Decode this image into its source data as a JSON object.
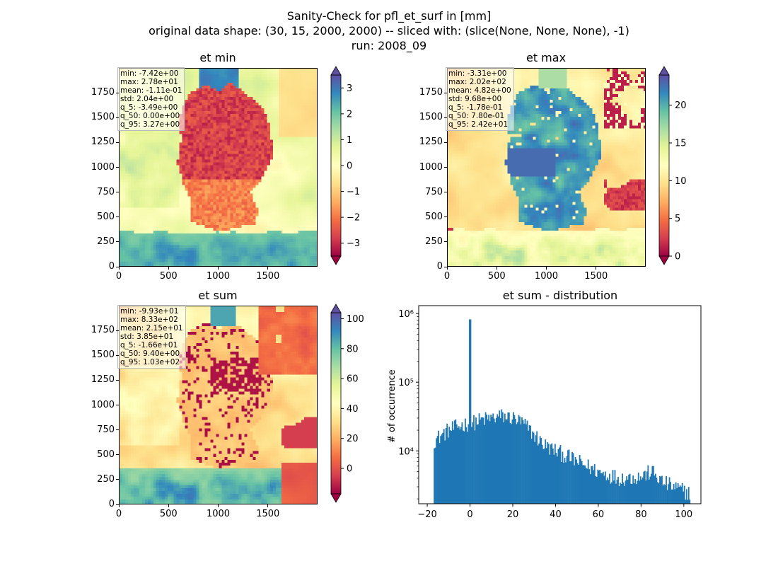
{
  "figure": {
    "title_lines": [
      "Sanity-Check for pfl_et_surf in [mm]",
      "original data shape: (30, 15, 2000, 2000) -- sliced with: (slice(None, None, None), -1)",
      "run: 2008_09"
    ]
  },
  "panels": {
    "et_min": {
      "title": "et min",
      "stats": [
        "min: -7.42e+00",
        "max: 2.78e+01",
        "mean: -1.11e-01",
        "std: 2.04e+00",
        "q_5: -3.49e+00",
        "q_50: 0.00e+00",
        "q_95: 3.27e+00"
      ],
      "colorbar_ticks": [
        "3",
        "2",
        "1",
        "0",
        "−1",
        "−2",
        "−3"
      ],
      "colormap": "Spectral"
    },
    "et_max": {
      "title": "et max",
      "stats": [
        "min: -3.31e+00",
        "max: 2.02e+02",
        "mean: 4.82e+00",
        "std: 9.68e+00",
        "q_5: -1.78e-01",
        "q_50: 7.80e-01",
        "q_95: 2.42e+01"
      ],
      "colorbar_ticks": [
        "20",
        "15",
        "10",
        "5",
        "0"
      ],
      "colormap": "Spectral"
    },
    "et_sum": {
      "title": "et sum",
      "stats": [
        "min: -9.93e+01",
        "max: 8.33e+02",
        "mean: 2.15e+01",
        "std: 3.85e+01",
        "q_5: -1.66e+01",
        "q_50: 9.40e+00",
        "q_95: 1.03e+02"
      ],
      "colorbar_ticks": [
        "100",
        "80",
        "60",
        "40",
        "20",
        "0"
      ],
      "colormap": "Spectral"
    },
    "map_axes": {
      "x_ticks": [
        "0",
        "500",
        "1000",
        "1500"
      ],
      "y_ticks": [
        "1750",
        "1500",
        "1250",
        "1000",
        "750",
        "500",
        "250",
        "0"
      ]
    },
    "hist": {
      "title": "et sum - distribution",
      "ylabel": "# of occurrence",
      "x_ticks": [
        "−20",
        "0",
        "20",
        "40",
        "60",
        "80",
        "100"
      ],
      "y_ticks": [
        "10⁶",
        "10⁵",
        "10⁴"
      ],
      "color": "#1f77b4"
    }
  },
  "chart_data": [
    {
      "type": "heatmap",
      "title": "et min",
      "xlim": [
        0,
        2000
      ],
      "ylim": [
        0,
        2000
      ],
      "colorbar_range": [
        -3.5,
        3.5
      ],
      "colormap": "Spectral"
    },
    {
      "type": "heatmap",
      "title": "et max",
      "xlim": [
        0,
        2000
      ],
      "ylim": [
        0,
        2000
      ],
      "colorbar_range": [
        0,
        24
      ],
      "colormap": "Spectral"
    },
    {
      "type": "heatmap",
      "title": "et sum",
      "xlim": [
        0,
        2000
      ],
      "ylim": [
        0,
        2000
      ],
      "colorbar_range": [
        -17,
        104
      ],
      "colormap": "Spectral"
    },
    {
      "type": "bar",
      "title": "et sum - distribution",
      "ylabel": "# of occurrence",
      "yscale": "log",
      "xlim": [
        -24,
        108
      ],
      "ylim": [
        1700,
        1300000
      ],
      "bin_range": [
        -17,
        103
      ],
      "profile_x": [
        -17,
        -10,
        -5,
        -1,
        0,
        1,
        5,
        10,
        15,
        20,
        25,
        30,
        35,
        40,
        50,
        60,
        70,
        80,
        85,
        90,
        95,
        100,
        103
      ],
      "profile_y": [
        14000,
        20000,
        23000,
        25000,
        820000,
        25000,
        28000,
        30000,
        32000,
        30000,
        25000,
        17000,
        12000,
        10000,
        7000,
        5000,
        4000,
        4200,
        5000,
        3500,
        3000,
        2600,
        2400
      ]
    }
  ]
}
